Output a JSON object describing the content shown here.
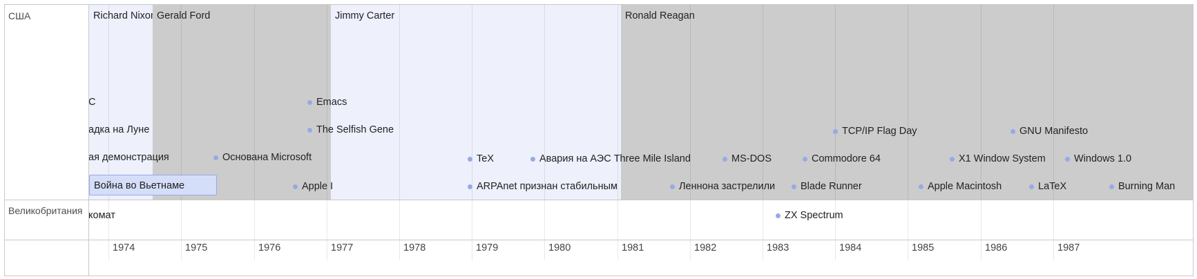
{
  "groups": [
    {
      "label": "США"
    },
    {
      "label": "Великобритания"
    }
  ],
  "presidents": [
    {
      "name": "Richard Nixon",
      "color": "#eef0fc"
    },
    {
      "name": "Gerald Ford",
      "color": "#cccccc"
    },
    {
      "name": "Jimmy Carter",
      "color": "#eef0fc"
    },
    {
      "name": "Ronald Reagan",
      "color": "#cccccc"
    }
  ],
  "years": [
    "1974",
    "1975",
    "1976",
    "1977",
    "1978",
    "1979",
    "1980",
    "1981",
    "1982",
    "1983",
    "1984",
    "1985",
    "1986",
    "1987"
  ],
  "events_usa": [
    {
      "label": "Emacs"
    },
    {
      "label": "The Selfish Gene"
    },
    {
      "label": "Основана Microsoft"
    },
    {
      "label": "Apple I"
    },
    {
      "label": "TeX"
    },
    {
      "label": "ARPAnet признан стабильным"
    },
    {
      "label": "Авария на АЭС Three Mile Island"
    },
    {
      "label": "Леннона застрелили"
    },
    {
      "label": "MS-DOS"
    },
    {
      "label": "Commodore 64"
    },
    {
      "label": "Blade Runner"
    },
    {
      "label": "TCP/IP Flag Day"
    },
    {
      "label": "Apple Macintosh"
    },
    {
      "label": "X1 Window System"
    },
    {
      "label": "GNU Manifesto"
    },
    {
      "label": "LaTeX"
    },
    {
      "label": "Windows 1.0"
    },
    {
      "label": "Burning Man"
    }
  ],
  "clipped_events": [
    {
      "label": "C"
    },
    {
      "label": "адка на Луне"
    },
    {
      "label": "ая демонстрация"
    }
  ],
  "range_event": {
    "label": "Война во Вьетнаме"
  },
  "events_uk": [
    {
      "label": "ZX Spectrum"
    },
    {
      "label": "комат"
    }
  ],
  "colors": {
    "dot": "#97a9e8",
    "range_fill": "#d5def8",
    "band_grey": "#cccccc",
    "band_light": "#eef0fc"
  }
}
